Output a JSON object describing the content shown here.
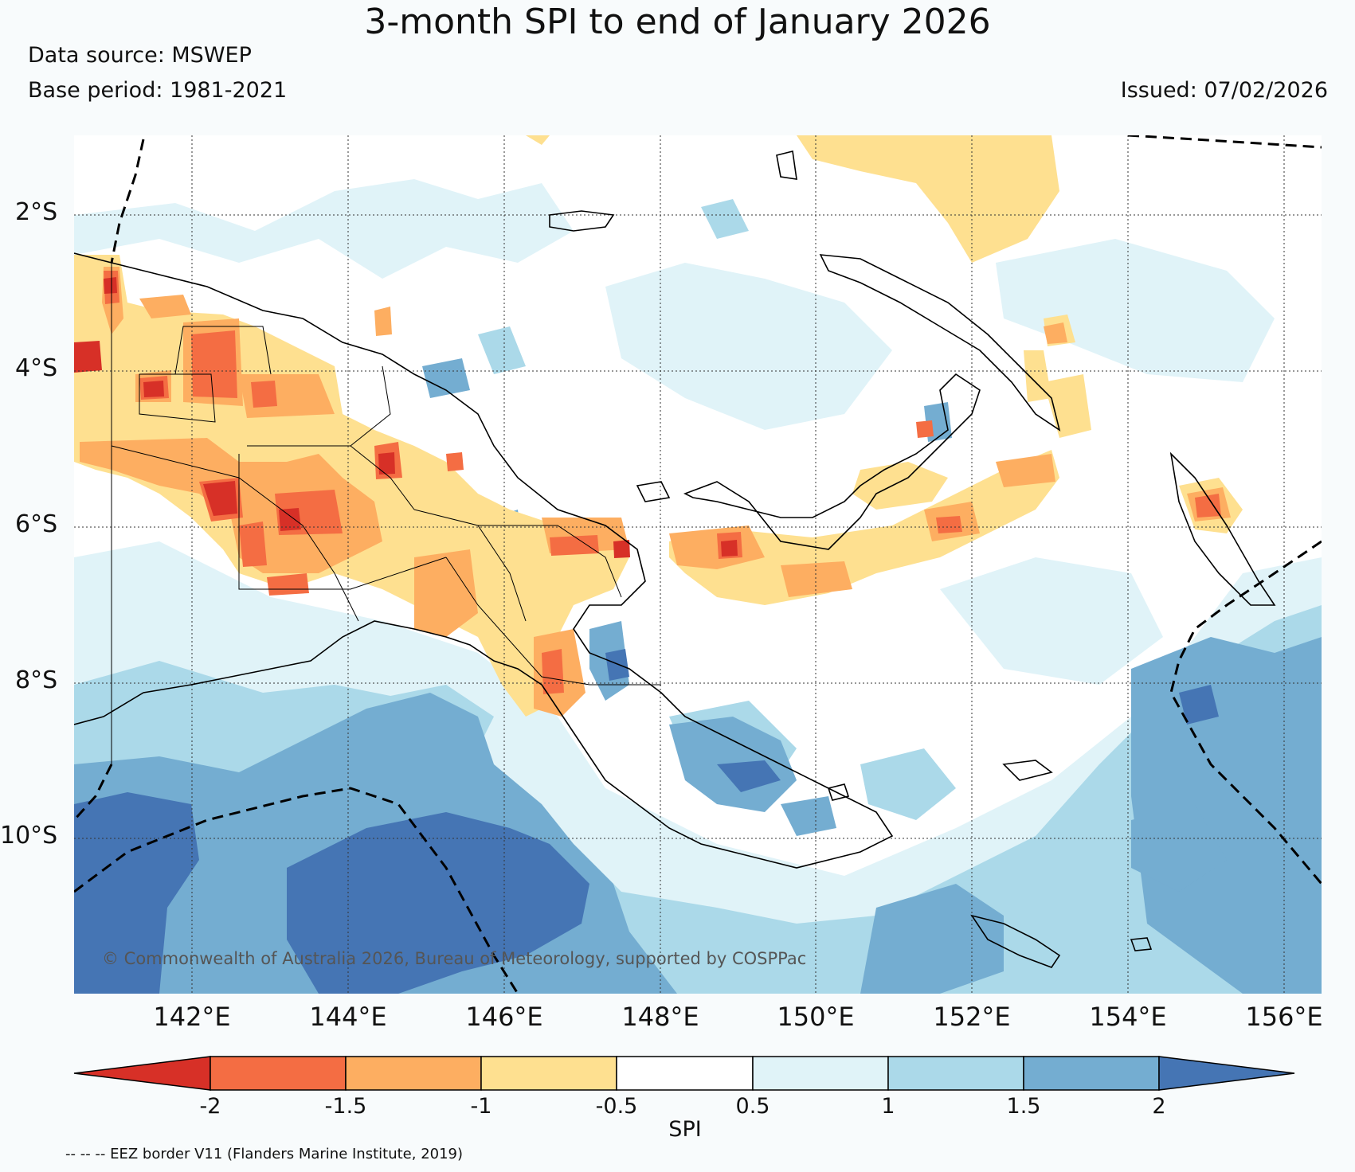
{
  "header": {
    "title": "3-month SPI to end of January 2026",
    "data_source": "Data source: MSWEP",
    "base_period": "Base period: 1981-2021",
    "issued": "Issued: 07/02/2026"
  },
  "map": {
    "lat_labels": [
      "2°S",
      "4°S",
      "6°S",
      "8°S",
      "10°S"
    ],
    "lon_labels": [
      "142°E",
      "144°E",
      "146°E",
      "148°E",
      "150°E",
      "152°E",
      "154°E",
      "156°E"
    ],
    "copyright": "© Commonwealth of Australia 2026, Bureau of Meteorology, supported by COSPPac"
  },
  "colorbar": {
    "label": "SPI",
    "ticks": [
      "-2",
      "-1.5",
      "-1",
      "-0.5",
      "0.5",
      "1",
      "1.5",
      "2"
    ],
    "colors": {
      "lt_m2": "#d73027",
      "m2_m15": "#f46d43",
      "m15_m1": "#fdae61",
      "m1_m05": "#fee090",
      "m05_05": "#ffffff",
      "05_1": "#e0f3f8",
      "1_15": "#abd9e9",
      "15_2": "#74add1",
      "gt_2": "#4575b4"
    }
  },
  "footer": {
    "eez_note": "-- -- -- EEZ border V11 (Flanders Marine Institute, 2019)"
  }
}
